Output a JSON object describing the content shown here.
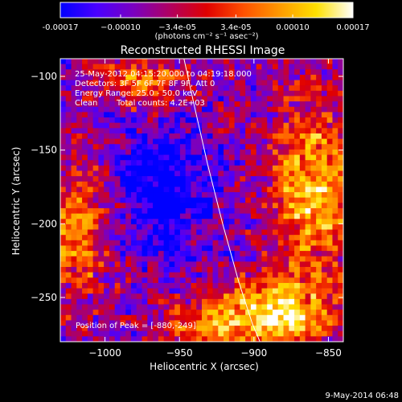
{
  "chart_data": {
    "type": "heatmap",
    "title": "Reconstructed RHESSI Image",
    "xlabel": "Heliocentric X (arcsec)",
    "ylabel": "Heliocentric Y (arcsec)",
    "xlim": [
      -1030,
      -840
    ],
    "ylim": [
      -280,
      -88
    ],
    "x_ticks": [
      -1000,
      -950,
      -900,
      -850
    ],
    "x_tick_labels": [
      "−1000",
      "−950",
      "−900",
      "−850"
    ],
    "y_ticks": [
      -100,
      -150,
      -200,
      -250
    ],
    "y_tick_labels": [
      "−100",
      "−150",
      "−200",
      "−250"
    ],
    "colorbar": {
      "range": [
        -0.00017,
        0.00017
      ],
      "ticks": [
        -0.00017,
        -0.0001,
        -3.4e-05,
        3.4e-05,
        0.0001,
        0.00017
      ],
      "tick_labels": [
        "-0.00017",
        "−0.00010",
        "−3.4e-05",
        "3.4e-05",
        "0.00010",
        "0.00017"
      ],
      "unit_label": "(photons cm⁻² s⁻¹ asec⁻²)",
      "colormap": [
        "#0000ff",
        "#4a00ff",
        "#7a00c0",
        "#b00060",
        "#e00000",
        "#ff5000",
        "#ff9a00",
        "#ffe000",
        "#ffffff"
      ]
    },
    "annotations": {
      "time_range": "25-May-2012 04:15:20.000 to 04:19:18.000",
      "detectors": "Detectors: 3F 5F 6F 7F 8F 9F, Att 0",
      "energy": "Energy Range: 25.0 - 50.0 keV",
      "algorithm": "Clean",
      "total_counts": "Total counts: 4.2E+03",
      "peak_text": "Position of Peak = [-880,-249]",
      "peak": [
        -880,
        -249
      ]
    },
    "limb_curve": {
      "x": [
        -947,
        -940,
        -931,
        -921,
        -910,
        -901,
        -896
      ],
      "y": [
        -88,
        -120,
        -160,
        -200,
        -240,
        -268,
        -280
      ]
    },
    "grid": false,
    "grid_size": [
      52,
      53
    ]
  },
  "footer": {
    "date": "9-May-2014 06:48"
  }
}
